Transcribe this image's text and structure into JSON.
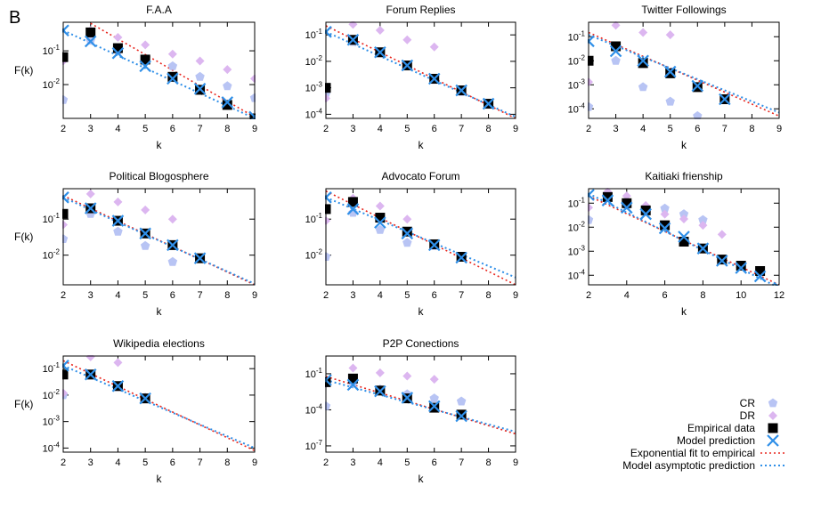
{
  "figure_label": "B",
  "legend": {
    "cr": "CR",
    "dr": "DR",
    "empirical": "Empirical data",
    "model": "Model prediction",
    "exp_fit": "Exponential fit to empirical",
    "asymptotic": "Model asymptotic prediction"
  },
  "colors": {
    "cr": "#b8c4f4",
    "dr": "#dcb6f0",
    "empirical": "#000000",
    "model": "#2f8fe8",
    "exp_fit": "#e8261e",
    "asymptotic": "#2f8fe8"
  },
  "chart_data": [
    {
      "type": "scatter",
      "title": "F.A.A",
      "xlabel": "k",
      "ylabel": "F(k)",
      "yscale": "log",
      "xlim": [
        2,
        9
      ],
      "xticks": [
        2,
        3,
        4,
        5,
        6,
        7,
        8,
        9
      ],
      "ylim": [
        0.001,
        0.7
      ],
      "yticks": [
        {
          "v": 0.1,
          "label": "10^-1"
        },
        {
          "v": 0.01,
          "label": "10^-2"
        }
      ],
      "series": [
        {
          "name": "CR",
          "x": [
            2,
            3,
            4,
            5,
            6,
            7,
            8,
            9
          ],
          "y": [
            0.0035,
            0.2,
            0.1,
            0.05,
            0.035,
            0.017,
            0.009,
            0.004
          ]
        },
        {
          "name": "DR",
          "x": [
            2,
            3,
            4,
            5,
            6,
            7,
            8,
            9
          ],
          "y": [
            0.05,
            0.4,
            0.25,
            0.15,
            0.08,
            0.05,
            0.028,
            0.015
          ]
        },
        {
          "name": "Empirical data",
          "x": [
            2,
            3,
            4,
            5,
            6,
            7,
            8,
            9
          ],
          "y": [
            0.065,
            0.35,
            0.12,
            0.055,
            0.017,
            0.007,
            0.0025,
            0.001
          ]
        },
        {
          "name": "Model prediction",
          "x": [
            2,
            3,
            4,
            5,
            6,
            7,
            8,
            9
          ],
          "y": [
            0.4,
            0.19,
            0.085,
            0.035,
            0.015,
            0.0075,
            0.003,
            0.0011
          ]
        },
        {
          "name": "Exponential fit to empirical",
          "x": [
            3,
            9
          ],
          "y": [
            0.65,
            0.0011
          ]
        },
        {
          "name": "Model asymptotic prediction",
          "x": [
            2,
            9
          ],
          "y": [
            0.4,
            0.001
          ]
        }
      ]
    },
    {
      "type": "scatter",
      "title": "Forum Replies",
      "xlabel": "k",
      "ylabel": "",
      "yscale": "log",
      "xlim": [
        2,
        9
      ],
      "xticks": [
        2,
        3,
        4,
        5,
        6,
        7,
        8,
        9
      ],
      "ylim": [
        7e-05,
        0.3
      ],
      "yticks": [
        {
          "v": 0.1,
          "label": "10^-1"
        },
        {
          "v": 0.01,
          "label": "10^-2"
        },
        {
          "v": 0.001,
          "label": "10^-3"
        },
        {
          "v": 0.0001,
          "label": "10^-4"
        }
      ],
      "series": [
        {
          "name": "CR",
          "x": [
            2,
            3,
            4,
            5,
            6,
            7,
            8
          ],
          "y": [
            0.0006,
            0.055,
            0.02,
            0.0065,
            0.002,
            0.0007,
            0.00025
          ]
        },
        {
          "name": "DR",
          "x": [
            2,
            3,
            4,
            5,
            6
          ],
          "y": [
            0.0004,
            0.25,
            0.15,
            0.065,
            0.035
          ]
        },
        {
          "name": "Empirical data",
          "x": [
            2,
            3,
            4,
            5,
            6,
            7,
            8
          ],
          "y": [
            0.001,
            0.065,
            0.022,
            0.007,
            0.0022,
            0.0008,
            0.00025
          ]
        },
        {
          "name": "Model prediction",
          "x": [
            2,
            3,
            4,
            5,
            6,
            7,
            8
          ],
          "y": [
            0.13,
            0.065,
            0.022,
            0.007,
            0.0022,
            0.0008,
            0.00025
          ]
        },
        {
          "name": "Exponential fit to empirical",
          "x": [
            2,
            9
          ],
          "y": [
            0.22,
            7e-05
          ]
        },
        {
          "name": "Model asymptotic prediction",
          "x": [
            2,
            9
          ],
          "y": [
            0.13,
            8e-05
          ]
        }
      ]
    },
    {
      "type": "scatter",
      "title": "Twitter Followings",
      "xlabel": "k",
      "ylabel": "",
      "yscale": "log",
      "xlim": [
        2,
        9
      ],
      "xticks": [
        2,
        3,
        4,
        5,
        6,
        7,
        8,
        9
      ],
      "ylim": [
        4e-05,
        0.4
      ],
      "yticks": [
        {
          "v": 0.1,
          "label": "10^-1"
        },
        {
          "v": 0.01,
          "label": "10^-2"
        },
        {
          "v": 0.001,
          "label": "10^-3"
        },
        {
          "v": 0.0001,
          "label": "10^-4"
        }
      ],
      "series": [
        {
          "name": "CR",
          "x": [
            2,
            3,
            4,
            5,
            6
          ],
          "y": [
            0.00012,
            0.01,
            0.0008,
            0.0002,
            5e-05
          ]
        },
        {
          "name": "DR",
          "x": [
            2,
            3,
            4,
            5
          ],
          "y": [
            0.0013,
            0.3,
            0.15,
            0.12
          ]
        },
        {
          "name": "Empirical data",
          "x": [
            2,
            3,
            4,
            5,
            6,
            7
          ],
          "y": [
            0.01,
            0.04,
            0.008,
            0.003,
            0.0008,
            0.00025
          ]
        },
        {
          "name": "Model prediction",
          "x": [
            2,
            3,
            4,
            5,
            6,
            7
          ],
          "y": [
            0.065,
            0.025,
            0.01,
            0.0035,
            0.0009,
            0.00025
          ]
        },
        {
          "name": "Exponential fit to empirical",
          "x": [
            2,
            9
          ],
          "y": [
            0.15,
            5e-05
          ]
        },
        {
          "name": "Model asymptotic prediction",
          "x": [
            2,
            9
          ],
          "y": [
            0.12,
            7e-05
          ]
        }
      ]
    },
    {
      "type": "scatter",
      "title": "Political Blogosphere",
      "xlabel": "k",
      "ylabel": "F(k)",
      "yscale": "log",
      "xlim": [
        2,
        9
      ],
      "xticks": [
        2,
        3,
        4,
        5,
        6,
        7,
        8,
        9
      ],
      "ylim": [
        0.0015,
        0.7
      ],
      "yticks": [
        {
          "v": 0.1,
          "label": "10^-1"
        },
        {
          "v": 0.01,
          "label": "10^-2"
        }
      ],
      "series": [
        {
          "name": "CR",
          "x": [
            2,
            3,
            4,
            5,
            6
          ],
          "y": [
            0.028,
            0.14,
            0.045,
            0.018,
            0.0065
          ]
        },
        {
          "name": "DR",
          "x": [
            2,
            3,
            4,
            5,
            6
          ],
          "y": [
            0.07,
            0.5,
            0.3,
            0.18,
            0.1
          ]
        },
        {
          "name": "Empirical data",
          "x": [
            2,
            3,
            4,
            5,
            6,
            7
          ],
          "y": [
            0.14,
            0.2,
            0.09,
            0.04,
            0.019,
            0.0082
          ]
        },
        {
          "name": "Model prediction",
          "x": [
            2,
            3,
            4,
            5,
            6,
            7
          ],
          "y": [
            0.4,
            0.2,
            0.09,
            0.04,
            0.019,
            0.0082
          ]
        },
        {
          "name": "Exponential fit to empirical",
          "x": [
            2,
            9
          ],
          "y": [
            0.45,
            0.0015
          ]
        },
        {
          "name": "Model asymptotic prediction",
          "x": [
            2,
            9
          ],
          "y": [
            0.4,
            0.0016
          ]
        }
      ]
    },
    {
      "type": "scatter",
      "title": "Advocato Forum",
      "xlabel": "k",
      "ylabel": "",
      "yscale": "log",
      "xlim": [
        2,
        9
      ],
      "xticks": [
        2,
        3,
        4,
        5,
        6,
        7,
        8,
        9
      ],
      "ylim": [
        0.0015,
        0.7
      ],
      "yticks": [
        {
          "v": 0.1,
          "label": "10^-1"
        },
        {
          "v": 0.01,
          "label": "10^-2"
        }
      ],
      "series": [
        {
          "name": "CR",
          "x": [
            2,
            3,
            4,
            5,
            6
          ],
          "y": [
            0.009,
            0.15,
            0.05,
            0.022,
            0.018
          ]
        },
        {
          "name": "DR",
          "x": [
            2,
            3,
            4,
            5
          ],
          "y": [
            0.09,
            0.38,
            0.23,
            0.1
          ]
        },
        {
          "name": "Empirical data",
          "x": [
            2,
            3,
            4,
            5,
            6,
            7
          ],
          "y": [
            0.19,
            0.3,
            0.11,
            0.045,
            0.02,
            0.009
          ]
        },
        {
          "name": "Model prediction",
          "x": [
            2,
            3,
            4,
            5,
            6,
            7
          ],
          "y": [
            0.4,
            0.19,
            0.08,
            0.04,
            0.019,
            0.0085
          ]
        },
        {
          "name": "Exponential fit to empirical",
          "x": [
            2,
            9
          ],
          "y": [
            0.6,
            0.0015
          ]
        },
        {
          "name": "Model asymptotic prediction",
          "x": [
            2,
            9
          ],
          "y": [
            0.4,
            0.0024
          ]
        }
      ]
    },
    {
      "type": "scatter",
      "title": "Kaitiaki frienship",
      "xlabel": "k",
      "ylabel": "",
      "yscale": "log",
      "xlim": [
        2,
        12
      ],
      "xticks": [
        2,
        4,
        6,
        8,
        10,
        12
      ],
      "ylim": [
        4e-05,
        0.4
      ],
      "yticks": [
        {
          "v": 0.1,
          "label": "10^-1"
        },
        {
          "v": 0.01,
          "label": "10^-2"
        },
        {
          "v": 0.001,
          "label": "10^-3"
        },
        {
          "v": 0.0001,
          "label": "10^-4"
        }
      ],
      "series": [
        {
          "name": "CR",
          "x": [
            2,
            3,
            4,
            5,
            6,
            7,
            8
          ],
          "y": [
            0.02,
            0.2,
            0.08,
            0.05,
            0.06,
            0.035,
            0.02
          ]
        },
        {
          "name": "DR",
          "x": [
            2,
            3,
            4,
            5,
            6,
            7,
            8,
            9
          ],
          "y": [
            0.065,
            0.3,
            0.2,
            0.08,
            0.035,
            0.022,
            0.012,
            0.005
          ]
        },
        {
          "name": "Empirical data",
          "x": [
            3,
            4,
            5,
            6,
            7,
            8,
            9,
            10,
            11
          ],
          "y": [
            0.18,
            0.1,
            0.05,
            0.012,
            0.0025,
            0.0013,
            0.00045,
            0.00025,
            0.00015
          ]
        },
        {
          "name": "Model prediction",
          "x": [
            2,
            3,
            4,
            5,
            6,
            7,
            8,
            9,
            10,
            11,
            12
          ],
          "y": [
            0.22,
            0.13,
            0.065,
            0.035,
            0.009,
            0.004,
            0.0013,
            0.0004,
            0.0002,
            9e-05,
            3e-05
          ]
        },
        {
          "name": "Exponential fit to empirical",
          "x": [
            2,
            12
          ],
          "y": [
            0.2,
            4e-05
          ]
        },
        {
          "name": "Model asymptotic prediction",
          "x": [
            2,
            12
          ],
          "y": [
            0.25,
            3e-05
          ]
        }
      ]
    },
    {
      "type": "scatter",
      "title": "Wikipedia elections",
      "xlabel": "k",
      "ylabel": "F(k)",
      "yscale": "log",
      "xlim": [
        2,
        9
      ],
      "xticks": [
        2,
        3,
        4,
        5,
        6,
        7,
        8,
        9
      ],
      "ylim": [
        7e-05,
        0.3
      ],
      "yticks": [
        {
          "v": 0.1,
          "label": "10^-1"
        },
        {
          "v": 0.01,
          "label": "10^-2"
        },
        {
          "v": 0.001,
          "label": "10^-3"
        },
        {
          "v": 0.0001,
          "label": "10^-4"
        }
      ],
      "series": [
        {
          "name": "CR",
          "x": [
            2,
            3,
            4,
            5
          ],
          "y": [
            0.01,
            0.055,
            0.02,
            0.008
          ]
        },
        {
          "name": "DR",
          "x": [
            2,
            3,
            4
          ],
          "y": [
            0.012,
            0.28,
            0.17
          ]
        },
        {
          "name": "Empirical data",
          "x": [
            2,
            3,
            4,
            5
          ],
          "y": [
            0.06,
            0.06,
            0.022,
            0.0075
          ]
        },
        {
          "name": "Model prediction",
          "x": [
            2,
            3,
            4,
            5
          ],
          "y": [
            0.13,
            0.06,
            0.022,
            0.0075
          ]
        },
        {
          "name": "Exponential fit to empirical",
          "x": [
            2,
            9
          ],
          "y": [
            0.2,
            8e-05
          ]
        },
        {
          "name": "Model asymptotic prediction",
          "x": [
            2,
            9
          ],
          "y": [
            0.13,
            0.0001
          ]
        }
      ]
    },
    {
      "type": "scatter",
      "title": "P2P Conections",
      "xlabel": "k",
      "ylabel": "",
      "yscale": "log",
      "xlim": [
        2,
        9
      ],
      "xticks": [
        2,
        3,
        4,
        5,
        6,
        7,
        8,
        9
      ],
      "ylim": [
        3e-08,
        3
      ],
      "yticks": [
        {
          "v": 0.1,
          "label": "10^-1"
        },
        {
          "v": 0.0001,
          "label": "10^-4"
        },
        {
          "v": 1e-07,
          "label": "10^-7"
        }
      ],
      "series": [
        {
          "name": "CR",
          "x": [
            2,
            3,
            4,
            5,
            6,
            7
          ],
          "y": [
            0.0002,
            0.015,
            0.005,
            0.002,
            0.0009,
            0.0005
          ]
        },
        {
          "name": "DR",
          "x": [
            2,
            3,
            4,
            5,
            6
          ],
          "y": [
            0.015,
            0.3,
            0.12,
            0.065,
            0.035
          ]
        },
        {
          "name": "Empirical data",
          "x": [
            2,
            3,
            4,
            5,
            6,
            7
          ],
          "y": [
            0.02,
            0.04,
            0.004,
            0.0009,
            0.00015,
            4e-05
          ]
        },
        {
          "name": "Model prediction",
          "x": [
            2,
            3,
            4,
            5,
            6,
            7
          ],
          "y": [
            0.03,
            0.012,
            0.0035,
            0.001,
            0.0002,
            3e-05
          ]
        },
        {
          "name": "Exponential fit to empirical",
          "x": [
            2,
            9
          ],
          "y": [
            0.06,
            1e-06
          ]
        },
        {
          "name": "Model asymptotic prediction",
          "x": [
            2,
            9
          ],
          "y": [
            0.03,
            1.5e-06
          ]
        }
      ]
    }
  ]
}
